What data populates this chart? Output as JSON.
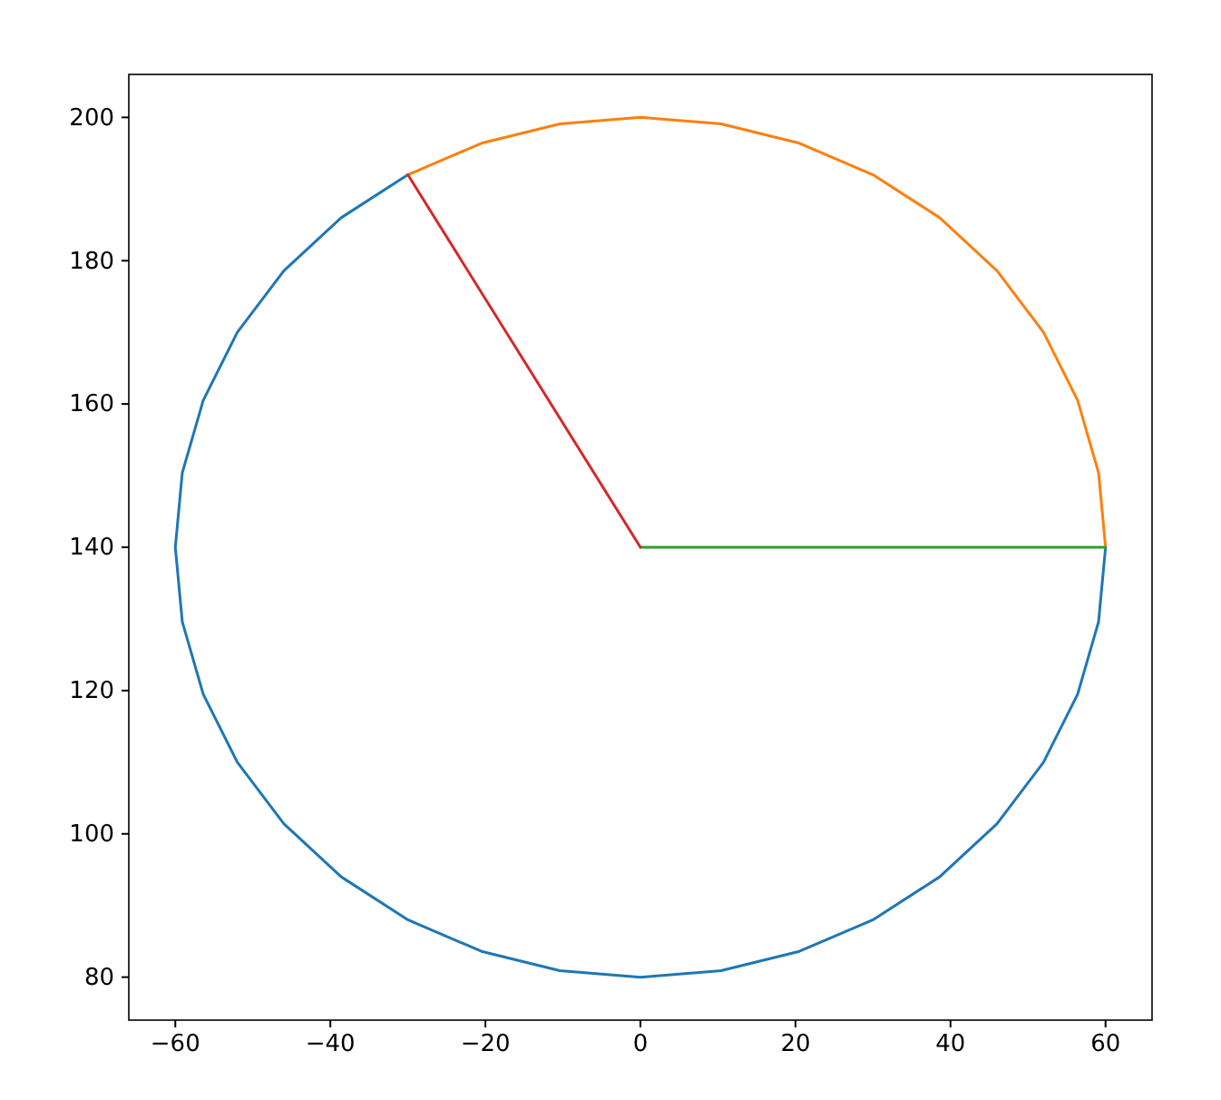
{
  "chart_data": {
    "type": "line",
    "xlim": [
      -66,
      66
    ],
    "ylim": [
      74,
      206
    ],
    "xticks": [
      -60,
      -40,
      -20,
      0,
      20,
      40,
      60
    ],
    "yticks": [
      80,
      100,
      120,
      140,
      160,
      180,
      200
    ],
    "grid": false,
    "marker": "none",
    "line_style": "solid",
    "series": [
      {
        "color": "#1f77b4",
        "x": [
          -30,
          -38.6,
          -46,
          -52,
          -56.4,
          -59.1,
          -60,
          -59.1,
          -56.4,
          -52,
          -46,
          -38.6,
          -30,
          -20.5,
          -10.4,
          0,
          10.4,
          20.5,
          30,
          38.6,
          46,
          52,
          56.4,
          59.1,
          60
        ],
        "values": [
          192,
          186,
          178.6,
          170,
          160.5,
          150.4,
          140,
          129.6,
          119.5,
          110,
          101.4,
          94,
          88,
          83.6,
          80.9,
          80,
          80.9,
          83.6,
          88,
          94,
          101.4,
          110,
          119.5,
          129.6,
          140
        ]
      },
      {
        "color": "#ff7f0e",
        "x": [
          60,
          59.1,
          56.4,
          52,
          46,
          38.6,
          30,
          20.5,
          10.4,
          0,
          -10.4,
          -20.5,
          -30
        ],
        "values": [
          140,
          150.4,
          160.5,
          170,
          178.6,
          186,
          192,
          196.4,
          199.1,
          200,
          199.1,
          196.4,
          192
        ]
      },
      {
        "color": "#2ca02c",
        "x": [
          0,
          60
        ],
        "values": [
          140,
          140
        ]
      },
      {
        "color": "#d62728",
        "x": [
          0,
          -30
        ],
        "values": [
          140,
          192
        ]
      }
    ]
  }
}
